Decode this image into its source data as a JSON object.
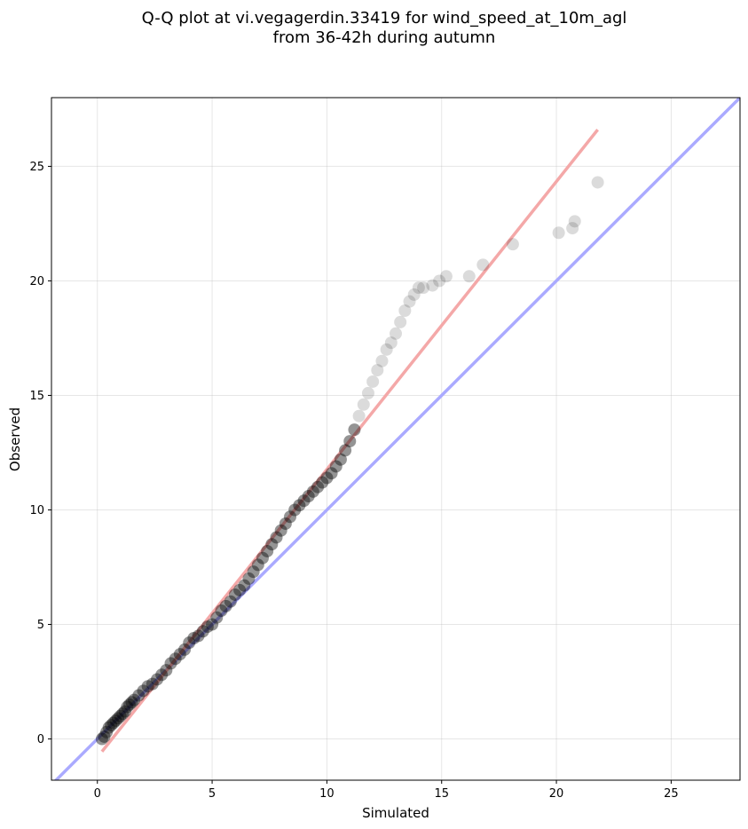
{
  "chart_data": {
    "type": "scatter",
    "title_line1": "Q-Q plot at vi.vegagerdin.33419 for wind_speed_at_10m_agl",
    "title_line2": "from 36-42h during autumn",
    "xlabel": "Simulated",
    "ylabel": "Observed",
    "xlim": [
      -2,
      28
    ],
    "ylim": [
      -1.8,
      28
    ],
    "xticks": [
      0,
      5,
      10,
      15,
      20,
      25
    ],
    "yticks": [
      0,
      5,
      10,
      15,
      20,
      25
    ],
    "grid": true,
    "identity_line": {
      "color": "#aaaaff",
      "x": [
        -2,
        28
      ],
      "y": [
        -2,
        28
      ]
    },
    "fit_line": {
      "color": "#f4a8a8",
      "x": [
        0.2,
        21.8
      ],
      "y": [
        -0.55,
        26.6
      ]
    },
    "point_color": "#000000",
    "points": {
      "x": [
        0.2,
        0.3,
        0.4,
        0.5,
        0.6,
        0.7,
        0.8,
        0.9,
        1.0,
        1.1,
        1.2,
        1.3,
        1.4,
        1.5,
        1.6,
        1.8,
        2.0,
        2.2,
        2.4,
        2.6,
        2.8,
        3.0,
        3.2,
        3.4,
        3.6,
        3.8,
        4.0,
        4.2,
        4.4,
        4.6,
        4.8,
        5.0,
        5.2,
        5.4,
        5.6,
        5.8,
        6.0,
        6.2,
        6.4,
        6.6,
        6.8,
        7.0,
        7.2,
        7.4,
        7.6,
        7.8,
        8.0,
        8.2,
        8.4,
        8.6,
        8.8,
        9.0,
        9.2,
        9.4,
        9.6,
        9.8,
        10.0,
        10.2,
        10.4,
        10.6,
        10.8,
        11.0,
        11.2,
        11.4,
        11.6,
        11.8,
        12.0,
        12.2,
        12.4,
        12.6,
        12.8,
        13.0,
        13.2,
        13.4,
        13.6,
        13.8,
        14.0,
        14.2,
        14.6,
        14.9,
        15.2,
        16.2,
        16.8,
        18.1,
        20.1,
        20.7,
        20.8,
        21.8
      ],
      "y": [
        0.0,
        0.1,
        0.3,
        0.5,
        0.6,
        0.7,
        0.8,
        0.9,
        1.0,
        1.1,
        1.2,
        1.4,
        1.5,
        1.6,
        1.7,
        1.9,
        2.1,
        2.3,
        2.4,
        2.6,
        2.8,
        3.0,
        3.3,
        3.5,
        3.7,
        3.9,
        4.2,
        4.4,
        4.5,
        4.7,
        4.9,
        5.0,
        5.3,
        5.6,
        5.8,
        6.0,
        6.3,
        6.5,
        6.7,
        7.0,
        7.3,
        7.6,
        7.9,
        8.2,
        8.5,
        8.8,
        9.1,
        9.4,
        9.7,
        10.0,
        10.2,
        10.4,
        10.6,
        10.8,
        11.0,
        11.2,
        11.4,
        11.6,
        11.9,
        12.2,
        12.6,
        13.0,
        13.5,
        14.1,
        14.6,
        15.1,
        15.6,
        16.1,
        16.5,
        17.0,
        17.3,
        17.7,
        18.2,
        18.7,
        19.1,
        19.4,
        19.7,
        19.7,
        19.8,
        20.0,
        20.2,
        20.2,
        20.7,
        21.6,
        22.1,
        22.3,
        22.6,
        24.3
      ]
    }
  }
}
